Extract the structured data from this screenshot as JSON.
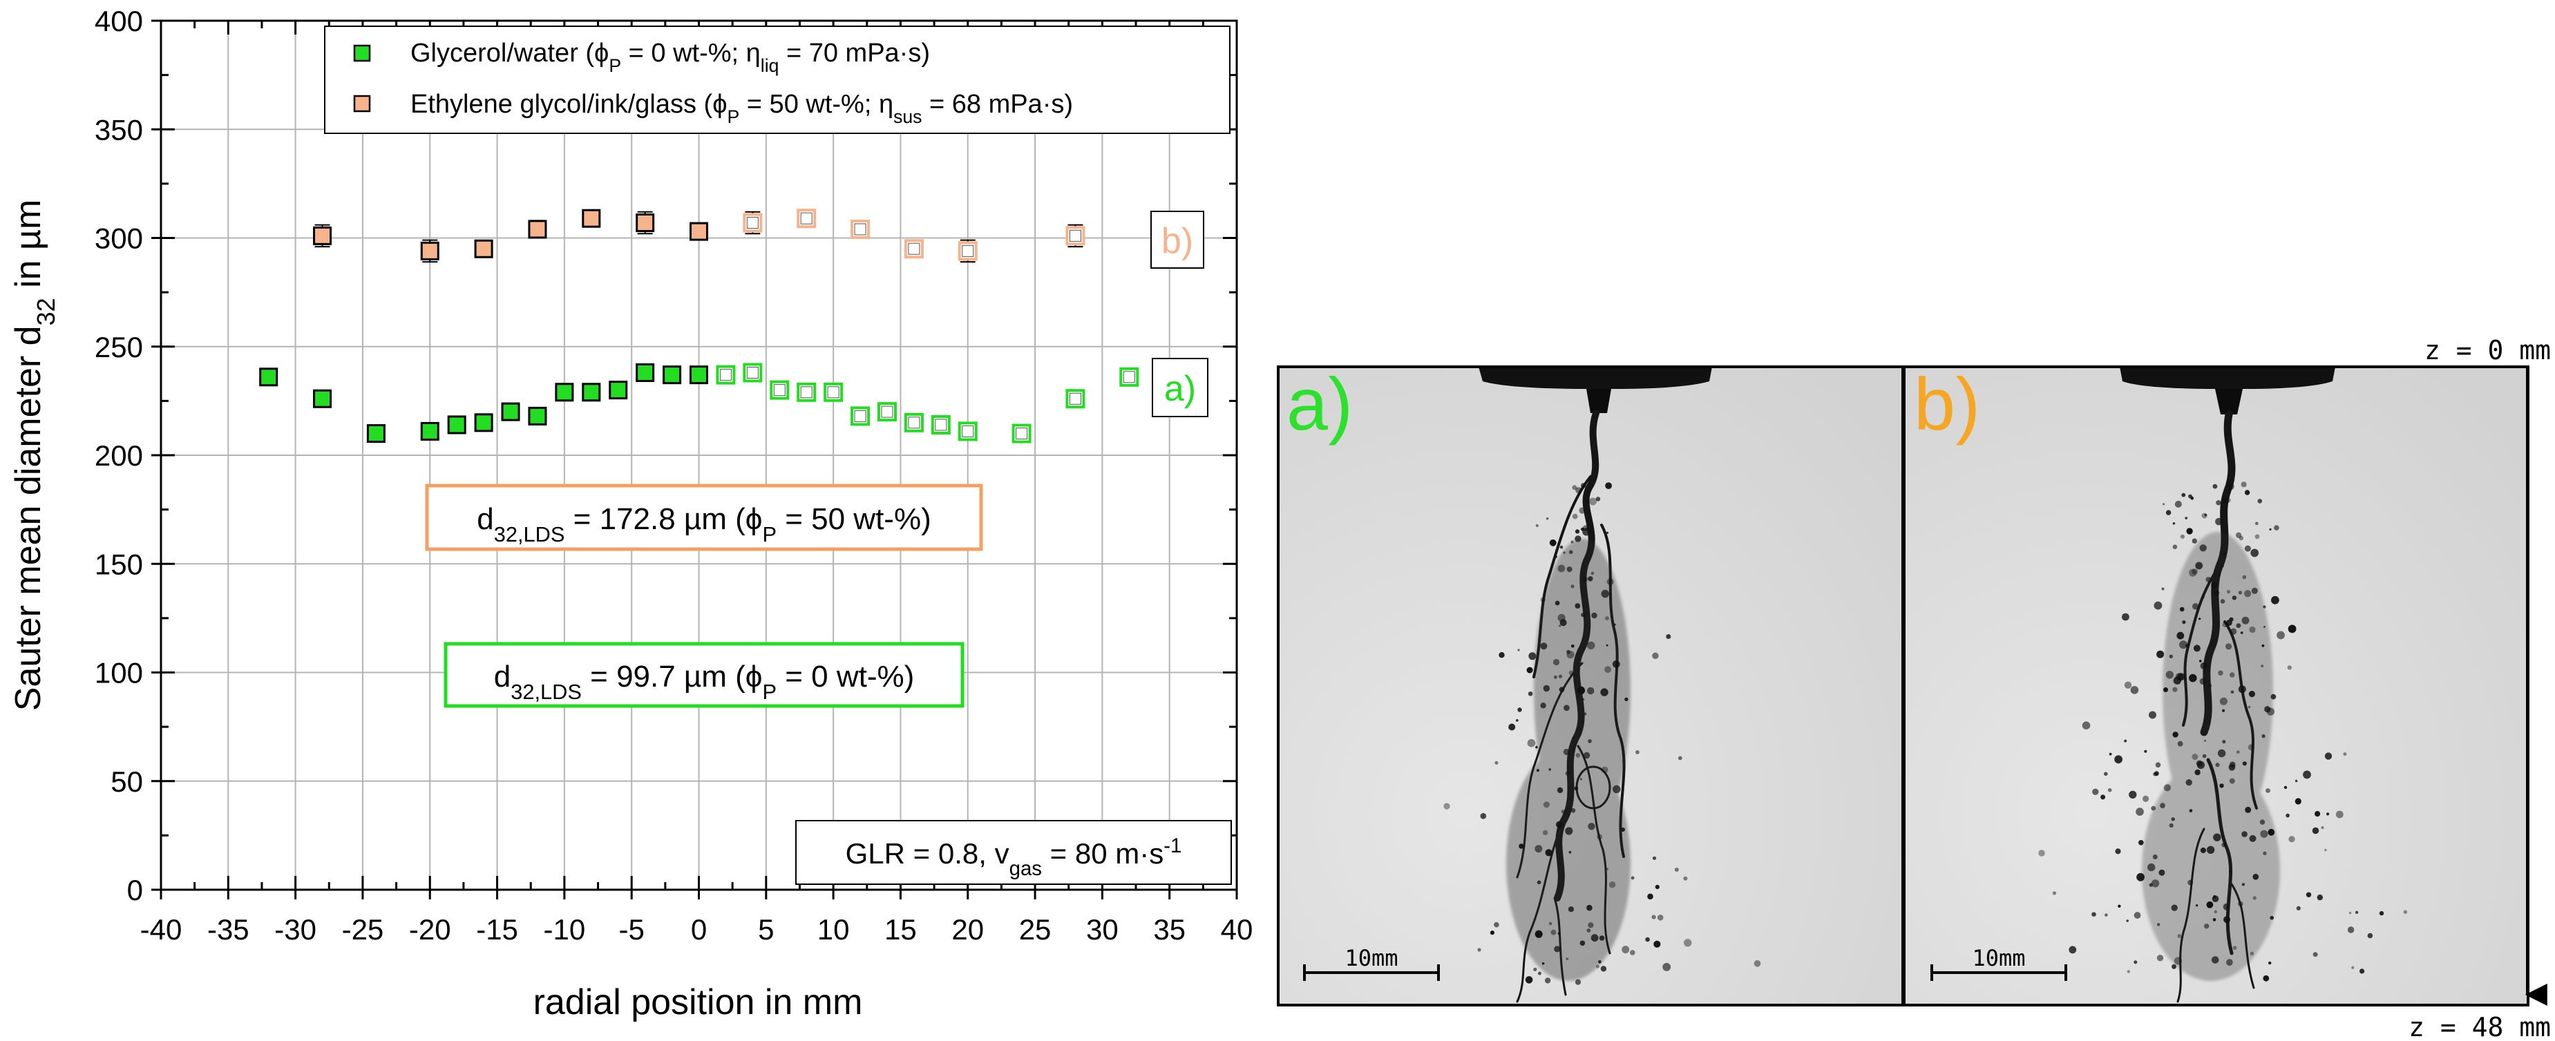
{
  "chart_data": {
    "type": "scatter",
    "xlabel": "radial position in mm",
    "ylabel": "Sauter mean diameter d",
    "ylabel_sub": "32",
    "ylabel_unit": " in µm",
    "xlim": [
      -40,
      40
    ],
    "ylim": [
      0,
      400
    ],
    "x_ticks": [
      -40,
      -35,
      -30,
      -25,
      -20,
      -15,
      -10,
      -5,
      0,
      5,
      10,
      15,
      20,
      25,
      30,
      35,
      40
    ],
    "y_ticks": [
      0,
      50,
      100,
      150,
      200,
      250,
      300,
      350,
      400
    ],
    "grid": true,
    "legend_position": "top",
    "series": [
      {
        "name": "Glycerol/water",
        "legend_parts": [
          "Glycerol/water (ϕ",
          "P",
          " = 0 wt-%; η",
          "liq",
          " = 70 mPa·s)"
        ],
        "color": "#22dd22",
        "curve_label": "a)",
        "x": [
          -32,
          -28,
          -24,
          -20,
          -18,
          -16,
          -14,
          -12,
          -10,
          -8,
          -6,
          -4,
          -2,
          0,
          2,
          4,
          6,
          8,
          10,
          12,
          14,
          16,
          18,
          20,
          24,
          28,
          32
        ],
        "y": [
          236,
          226,
          210,
          211,
          214,
          215,
          220,
          218,
          229,
          229,
          230,
          238,
          237,
          237,
          237,
          238,
          230,
          229,
          229,
          218,
          220,
          215,
          214,
          211,
          210,
          226,
          236
        ],
        "err": [
          3,
          2,
          2,
          3,
          2,
          2,
          3,
          2,
          2,
          2,
          2,
          3,
          2,
          3,
          2,
          3,
          2,
          2,
          2,
          2,
          3,
          2,
          2,
          3,
          2,
          2,
          3
        ],
        "filled": [
          true,
          true,
          true,
          true,
          true,
          true,
          true,
          true,
          true,
          true,
          true,
          true,
          true,
          true,
          false,
          false,
          false,
          false,
          false,
          false,
          false,
          false,
          false,
          false,
          false,
          false,
          false
        ]
      },
      {
        "name": "Ethylene glycol/ink/glass",
        "legend_parts": [
          "Ethylene glycol/ink/glass (ϕ",
          "P",
          " = 50 wt-%; η",
          "sus",
          " = 68 mPa·s)"
        ],
        "color": "#f5b48c",
        "curve_label": "b)",
        "x": [
          -28,
          -20,
          -16,
          -12,
          -8,
          -4,
          0,
          4,
          8,
          12,
          16,
          20,
          28
        ],
        "y": [
          301,
          294,
          295,
          304,
          309,
          307,
          303,
          307,
          309,
          304,
          295,
          294,
          301
        ],
        "err": [
          5,
          5,
          3,
          4,
          3,
          5,
          3,
          5,
          3,
          4,
          3,
          5,
          5
        ],
        "filled": [
          true,
          true,
          true,
          true,
          true,
          true,
          true,
          false,
          false,
          false,
          false,
          false,
          false
        ]
      }
    ],
    "annotations": {
      "lds_b": {
        "parts": [
          "d",
          "32,LDS",
          " = 172.8 µm (ϕ",
          "P",
          " = 50 wt-%)"
        ],
        "color": "#f5a060"
      },
      "lds_a": {
        "parts": [
          "d",
          "32,LDS",
          " = 99.7 µm (ϕ",
          "P",
          " = 0 wt-%)"
        ],
        "color": "#22dd22"
      },
      "conditions": {
        "parts": [
          "GLR = 0.8, v",
          "gas",
          " = 80 m·s",
          "-1"
        ]
      }
    }
  },
  "photos": {
    "panel_a_label": "a)",
    "panel_b_label": "b)",
    "scale_bar_label": "10mm",
    "z_top": "z = 0 mm",
    "z_bottom": "z = 48 mm",
    "label_a_color": "#2ee02e",
    "label_b_color": "#f5a623"
  }
}
